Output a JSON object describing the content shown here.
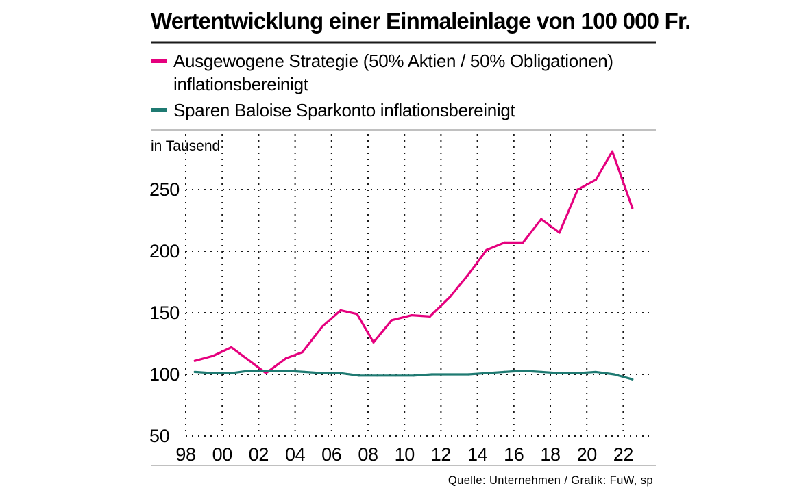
{
  "chart_data": {
    "type": "line",
    "title": "Wertentwicklung einer Einmaleinlage von 100 000 Fr.",
    "ylabel": "in Tausend",
    "xlabel": "",
    "source": "Quelle: Unternehmen / Grafik: FuW, sp",
    "legend": {
      "placement": "top",
      "entries": [
        {
          "lines": [
            "Ausgewogene Strategie (50% Aktien / 50% Obligationen)",
            "inflationsbereinigt"
          ],
          "color": "#e5007e"
        },
        {
          "lines": [
            "Sparen Baloise Sparkonto inflationsbereinigt"
          ],
          "color": "#1f7a72"
        }
      ]
    },
    "xlim": [
      1998,
      2023.5
    ],
    "ylim": [
      50,
      290
    ],
    "yticks": [
      50,
      100,
      150,
      200,
      250
    ],
    "xticks": [
      1998,
      2000,
      2002,
      2004,
      2006,
      2008,
      2010,
      2012,
      2014,
      2016,
      2018,
      2020,
      2022
    ],
    "xtick_labels": [
      "98",
      "00",
      "02",
      "04",
      "06",
      "08",
      "10",
      "12",
      "14",
      "16",
      "18",
      "20",
      "22"
    ],
    "grid": true,
    "series": [
      {
        "name": "Ausgewogene Strategie (50% Aktien / 50% Obligationen) inflationsbereinigt",
        "color": "#e5007e",
        "x": [
          1998.5,
          1999.5,
          2000.5,
          2001.5,
          2002.4,
          2003.5,
          2004.4,
          2005.5,
          2006.5,
          2007.4,
          2008.3,
          2009.3,
          2010.4,
          2011.4,
          2012.5,
          2013.5,
          2014.5,
          2015.5,
          2016.5,
          2017.5,
          2018.5,
          2019.5,
          2020.5,
          2021.4,
          2022.5
        ],
        "values": [
          111,
          115,
          122,
          111,
          101,
          113,
          118,
          139,
          152,
          149,
          126,
          144,
          148,
          147,
          163,
          181,
          201,
          207,
          207,
          226,
          215,
          250,
          258,
          281,
          235
        ]
      },
      {
        "name": "Sparen Baloise Sparkonto inflationsbereinigt",
        "color": "#1f7a72",
        "x": [
          1998.5,
          1999.5,
          2000.5,
          2001.5,
          2002.5,
          2003.5,
          2004.5,
          2005.5,
          2006.5,
          2007.5,
          2008.5,
          2009.5,
          2010.5,
          2011.5,
          2012.5,
          2013.5,
          2014.5,
          2015.5,
          2016.5,
          2017.5,
          2018.5,
          2019.5,
          2020.5,
          2021.5,
          2022.5
        ],
        "values": [
          102,
          101,
          101,
          103,
          103,
          103,
          102,
          101,
          101,
          99,
          99,
          99,
          99,
          100,
          100,
          100,
          101,
          102,
          103,
          102,
          101,
          101,
          102,
          100,
          96
        ]
      }
    ]
  }
}
